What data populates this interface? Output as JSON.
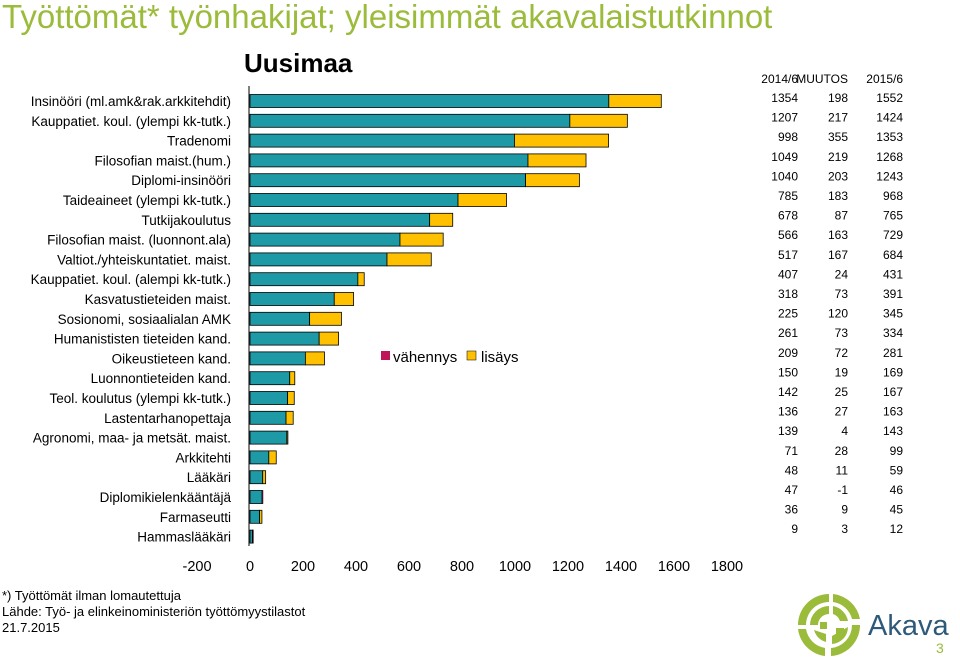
{
  "header": {
    "title": "Työttömät* työnhakijat; yleisimmät akavalaistutkinnot",
    "region": "Uusimaa"
  },
  "colors": {
    "base": "#1d9aa6",
    "increase": "#ffc000",
    "decrease": "#c0145a",
    "title": "#9bbb3b"
  },
  "chart_data": {
    "type": "bar",
    "orientation": "horizontal",
    "stacked": true,
    "categories": [
      "Insinööri (ml.amk&rak.arkkitehdit)",
      "Kauppatiet. koul. (ylempi kk-tutk.)",
      "Tradenomi",
      "Filosofian maist.(hum.)",
      "Diplomi-insinööri",
      "Taideaineet (ylempi kk-tutk.)",
      "Tutkijakoulutus",
      "Filosofian maist. (luonnont.ala)",
      "Valtiot./yhteiskuntatiet. maist.",
      "Kauppatiet. koul. (alempi kk-tutk.)",
      "Kasvatustieteiden maist.",
      "Sosionomi, sosiaalialan AMK",
      "Humanististen tieteiden kand.",
      "Oikeustieteen kand.",
      "Luonnontieteiden kand.",
      "Teol. koulutus (ylempi kk-tutk.)",
      "Lastentarhanopettaja",
      "Agronomi, maa- ja metsät. maist.",
      "Arkkitehti",
      "Lääkäri",
      "Diplomikielenkääntäjä",
      "Farmaseutti",
      "Hammaslääkäri"
    ],
    "series": [
      {
        "name": "",
        "values": [
          1354,
          1207,
          998,
          1049,
          1040,
          785,
          678,
          566,
          517,
          407,
          318,
          225,
          261,
          209,
          150,
          142,
          136,
          139,
          71,
          48,
          46,
          36,
          9
        ]
      },
      {
        "name": "vähennys",
        "values": [
          0,
          0,
          0,
          0,
          0,
          0,
          0,
          0,
          0,
          0,
          0,
          0,
          0,
          0,
          0,
          0,
          0,
          0,
          0,
          0,
          1,
          0,
          0
        ]
      },
      {
        "name": "lisäys",
        "values": [
          198,
          217,
          355,
          219,
          203,
          183,
          87,
          163,
          167,
          24,
          73,
          120,
          73,
          72,
          19,
          25,
          27,
          4,
          28,
          11,
          0,
          9,
          3
        ]
      }
    ],
    "xlim": [
      -200,
      1800
    ],
    "xticks": [
      -200,
      0,
      200,
      400,
      600,
      800,
      1000,
      1200,
      1400,
      1600,
      1800
    ],
    "grid": false,
    "legend": "middle",
    "table": {
      "headers": [
        "2014/6",
        "MUUTOS",
        "2015/6"
      ],
      "rows": [
        [
          "1354",
          "198",
          "1552"
        ],
        [
          "1207",
          "217",
          "1424"
        ],
        [
          "998",
          "355",
          "1353"
        ],
        [
          "1049",
          "219",
          "1268"
        ],
        [
          "1040",
          "203",
          "1243"
        ],
        [
          "785",
          "183",
          "968"
        ],
        [
          "678",
          "87",
          "765"
        ],
        [
          "566",
          "163",
          "729"
        ],
        [
          "517",
          "167",
          "684"
        ],
        [
          "407",
          "24",
          "431"
        ],
        [
          "318",
          "73",
          "391"
        ],
        [
          "225",
          "120",
          "345"
        ],
        [
          "261",
          "73",
          "334"
        ],
        [
          "209",
          "72",
          "281"
        ],
        [
          "150",
          "19",
          "169"
        ],
        [
          "142",
          "25",
          "167"
        ],
        [
          "136",
          "27",
          "163"
        ],
        [
          "139",
          "4",
          "143"
        ],
        [
          "71",
          "28",
          "99"
        ],
        [
          "48",
          "11",
          "59"
        ],
        [
          "47",
          "-1",
          "46"
        ],
        [
          "36",
          "9",
          "45"
        ],
        [
          "9",
          "3",
          "12"
        ]
      ]
    }
  },
  "footer": {
    "note": "*) Työttömät ilman lomautettuja",
    "source": "Lähde: Työ- ja elinkeinoministeriön työttömyystilastot",
    "date": "21.7.2015",
    "logo_text": "Akava",
    "page": "3"
  }
}
